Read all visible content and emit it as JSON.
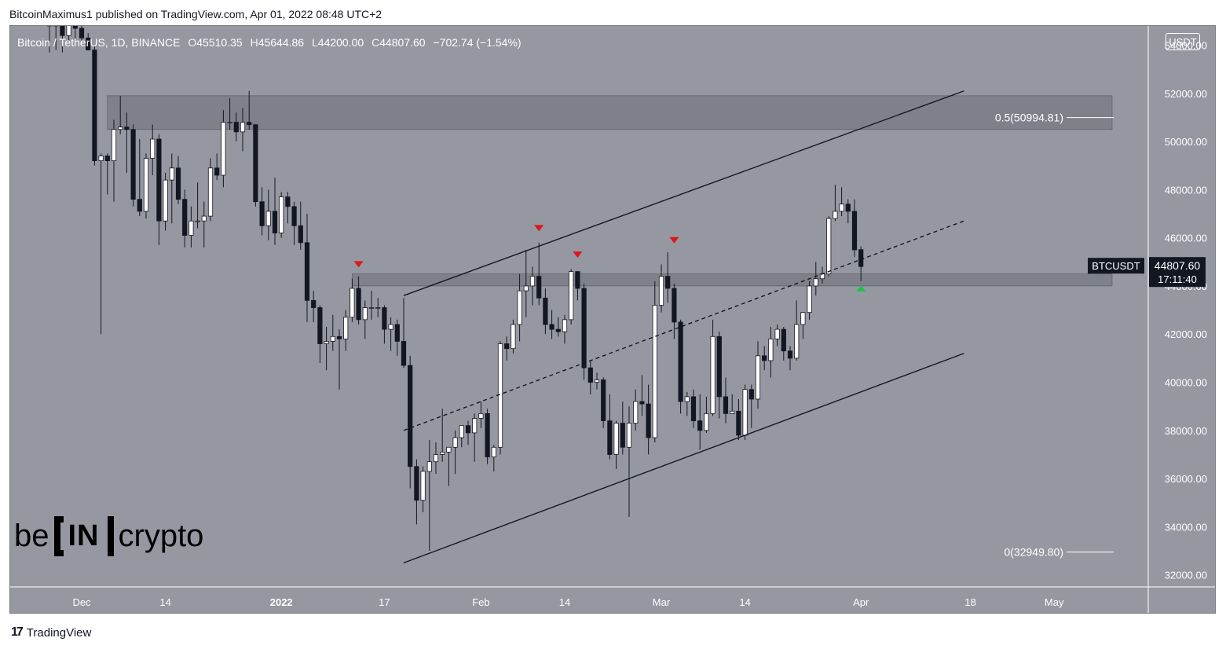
{
  "header": {
    "publisher_line": "BitcoinMaximus1 published on TradingView.com, Apr 01, 2022 08:48 UTC+2"
  },
  "symbol": {
    "name": "Bitcoin / TetherUS, 1D, BINANCE",
    "o_label": "O",
    "o_value": "45510.35",
    "h_label": "H",
    "h_value": "45644.86",
    "l_label": "L",
    "l_value": "44200.00",
    "c_label": "C",
    "c_value": "44807.60",
    "change": "−702.74 (−1.54%)"
  },
  "price_unit": "USDT",
  "footer": {
    "logo": "17",
    "brand": "TradingView"
  },
  "watermark": {
    "left": "be",
    "middle": "IN",
    "right": "crypto"
  },
  "colors": {
    "background": "#9598a1",
    "up_candle": "#ffffff",
    "down_candle": "#131722",
    "marker_red": "#e0151a",
    "marker_green": "#22c04b",
    "zone": "#6e7079"
  },
  "chart_data": {
    "type": "candlestick",
    "ylim": [
      31500,
      54800
    ],
    "y_ticks": [
      32000,
      34000,
      36000,
      38000,
      40000,
      42000,
      44000,
      46000,
      48000,
      50000,
      52000,
      54000
    ],
    "x_start_date": "2021-11-26",
    "x_ticks": [
      {
        "label": "Dec",
        "date": "2021-12-01"
      },
      {
        "label": "14",
        "date": "2021-12-14"
      },
      {
        "label": "2022",
        "date": "2022-01-01",
        "bold": true
      },
      {
        "label": "17",
        "date": "2022-01-17"
      },
      {
        "label": "Feb",
        "date": "2022-02-01"
      },
      {
        "label": "14",
        "date": "2022-02-14"
      },
      {
        "label": "Mar",
        "date": "2022-03-01"
      },
      {
        "label": "14",
        "date": "2022-03-14"
      },
      {
        "label": "Apr",
        "date": "2022-04-01"
      },
      {
        "label": "18",
        "date": "2022-04-18"
      },
      {
        "label": "May",
        "date": "2022-05-01"
      }
    ],
    "candles": [
      [
        "2021-11-26",
        58900,
        59200,
        53700,
        54800
      ],
      [
        "2021-11-27",
        54800,
        55300,
        53800,
        54900
      ],
      [
        "2021-11-28",
        54900,
        55000,
        53700,
        54400
      ],
      [
        "2021-11-29",
        54400,
        55200,
        54200,
        55000
      ],
      [
        "2021-11-30",
        55000,
        55200,
        54100,
        54700
      ],
      [
        "2021-12-01",
        54700,
        55300,
        54200,
        54300
      ],
      [
        "2021-12-02",
        54300,
        54500,
        53800,
        53800
      ],
      [
        "2021-12-03",
        53800,
        54000,
        49000,
        49200
      ],
      [
        "2021-12-04",
        49200,
        49500,
        42000,
        49400
      ],
      [
        "2021-12-05",
        49400,
        49500,
        47800,
        49200
      ],
      [
        "2021-12-06",
        49200,
        50900,
        47500,
        50500
      ],
      [
        "2021-12-07",
        50500,
        51900,
        50300,
        50600
      ],
      [
        "2021-12-08",
        50600,
        51200,
        48700,
        50500
      ],
      [
        "2021-12-09",
        50500,
        50700,
        47300,
        47600
      ],
      [
        "2021-12-10",
        47600,
        50100,
        46900,
        47100
      ],
      [
        "2021-12-11",
        47100,
        49500,
        46800,
        49300
      ],
      [
        "2021-12-12",
        49300,
        50700,
        48600,
        50100
      ],
      [
        "2021-12-13",
        50100,
        50300,
        45700,
        46700
      ],
      [
        "2021-12-14",
        46700,
        48700,
        46300,
        48400
      ],
      [
        "2021-12-15",
        48400,
        49500,
        46600,
        48900
      ],
      [
        "2021-12-16",
        48900,
        49400,
        47400,
        47600
      ],
      [
        "2021-12-17",
        47600,
        48000,
        45600,
        46100
      ],
      [
        "2021-12-18",
        46100,
        47300,
        45600,
        46700
      ],
      [
        "2021-12-19",
        46700,
        48300,
        46400,
        46700
      ],
      [
        "2021-12-20",
        46700,
        47500,
        45600,
        46900
      ],
      [
        "2021-12-21",
        46900,
        49300,
        46700,
        48900
      ],
      [
        "2021-12-22",
        48900,
        49500,
        48400,
        48600
      ],
      [
        "2021-12-23",
        48600,
        51300,
        48100,
        50800
      ],
      [
        "2021-12-24",
        50800,
        51800,
        50500,
        50800
      ],
      [
        "2021-12-25",
        50800,
        51200,
        50000,
        50400
      ],
      [
        "2021-12-26",
        50400,
        51400,
        49600,
        50800
      ],
      [
        "2021-12-27",
        50800,
        52100,
        50500,
        50700
      ],
      [
        "2021-12-28",
        50700,
        50700,
        47300,
        47500
      ],
      [
        "2021-12-29",
        47500,
        48100,
        46100,
        46500
      ],
      [
        "2021-12-30",
        46500,
        48000,
        45900,
        47100
      ],
      [
        "2021-12-31",
        47100,
        48500,
        45700,
        46200
      ],
      [
        "2022-01-01",
        46200,
        47900,
        46000,
        47700
      ],
      [
        "2022-01-02",
        47700,
        47900,
        46600,
        47300
      ],
      [
        "2022-01-03",
        47300,
        47500,
        45700,
        46500
      ],
      [
        "2022-01-04",
        46500,
        47500,
        45500,
        45800
      ],
      [
        "2022-01-05",
        45800,
        47000,
        42500,
        43400
      ],
      [
        "2022-01-06",
        43400,
        43800,
        42500,
        43100
      ],
      [
        "2022-01-07",
        43100,
        43200,
        40800,
        41600
      ],
      [
        "2022-01-08",
        41600,
        42300,
        40500,
        41700
      ],
      [
        "2022-01-09",
        41700,
        42800,
        41300,
        41900
      ],
      [
        "2022-01-10",
        41900,
        42200,
        39700,
        41800
      ],
      [
        "2022-01-11",
        41800,
        43000,
        41300,
        42700
      ],
      [
        "2022-01-12",
        42700,
        44300,
        42500,
        43900
      ],
      [
        "2022-01-13",
        43900,
        44400,
        42400,
        42600
      ],
      [
        "2022-01-14",
        42600,
        43400,
        41800,
        43100
      ],
      [
        "2022-01-15",
        43100,
        43800,
        42600,
        43100
      ],
      [
        "2022-01-16",
        43100,
        43500,
        42700,
        43100
      ],
      [
        "2022-01-17",
        43100,
        43200,
        41600,
        42200
      ],
      [
        "2022-01-18",
        42200,
        42700,
        41300,
        42400
      ],
      [
        "2022-01-19",
        42400,
        42600,
        41100,
        41700
      ],
      [
        "2022-01-20",
        41700,
        43500,
        40600,
        40700
      ],
      [
        "2022-01-21",
        40700,
        41100,
        35600,
        36500
      ],
      [
        "2022-01-22",
        36500,
        36800,
        34100,
        35100
      ],
      [
        "2022-01-23",
        35100,
        36500,
        34600,
        36300
      ],
      [
        "2022-01-24",
        36300,
        37600,
        33000,
        36700
      ],
      [
        "2022-01-25",
        36700,
        37500,
        36200,
        37000
      ],
      [
        "2022-01-26",
        37000,
        38900,
        36700,
        37100
      ],
      [
        "2022-01-27",
        37100,
        37300,
        35700,
        37300
      ],
      [
        "2022-01-28",
        37300,
        38000,
        36200,
        37700
      ],
      [
        "2022-01-29",
        37700,
        38200,
        37300,
        38200
      ],
      [
        "2022-01-30",
        38200,
        38400,
        37400,
        37900
      ],
      [
        "2022-01-31",
        37900,
        38700,
        36700,
        38500
      ],
      [
        "2022-02-01",
        38500,
        39200,
        38100,
        38700
      ],
      [
        "2022-02-02",
        38700,
        38900,
        36600,
        36900
      ],
      [
        "2022-02-03",
        36900,
        37400,
        36300,
        37300
      ],
      [
        "2022-02-04",
        37300,
        41700,
        37000,
        41600
      ],
      [
        "2022-02-05",
        41600,
        41900,
        40900,
        41400
      ],
      [
        "2022-02-06",
        41400,
        42600,
        41200,
        42400
      ],
      [
        "2022-02-07",
        42400,
        44500,
        41700,
        43800
      ],
      [
        "2022-02-08",
        43800,
        45500,
        42700,
        44000
      ],
      [
        "2022-02-09",
        44000,
        44800,
        43200,
        44400
      ],
      [
        "2022-02-10",
        44400,
        45800,
        43200,
        43500
      ],
      [
        "2022-02-11",
        43500,
        43900,
        42000,
        42400
      ],
      [
        "2022-02-12",
        42400,
        43000,
        41800,
        42200
      ],
      [
        "2022-02-13",
        42200,
        42700,
        41900,
        42100
      ],
      [
        "2022-02-14",
        42100,
        42800,
        41600,
        42600
      ],
      [
        "2022-02-15",
        42600,
        44700,
        42400,
        44600
      ],
      [
        "2022-02-16",
        44600,
        44600,
        43400,
        43900
      ],
      [
        "2022-02-17",
        43900,
        44100,
        40100,
        40600
      ],
      [
        "2022-02-18",
        40600,
        40900,
        39500,
        40000
      ],
      [
        "2022-02-19",
        40000,
        40400,
        39700,
        40100
      ],
      [
        "2022-02-20",
        40100,
        40200,
        38100,
        38400
      ],
      [
        "2022-02-21",
        38400,
        39500,
        36800,
        37000
      ],
      [
        "2022-02-22",
        37000,
        38400,
        36400,
        38300
      ],
      [
        "2022-02-23",
        38300,
        39200,
        37000,
        37300
      ],
      [
        "2022-02-24",
        37300,
        39000,
        34400,
        38300
      ],
      [
        "2022-02-25",
        38300,
        39700,
        38000,
        39200
      ],
      [
        "2022-02-26",
        39200,
        40300,
        38600,
        39100
      ],
      [
        "2022-02-27",
        39100,
        39900,
        37000,
        37700
      ],
      [
        "2022-02-28",
        37700,
        44200,
        37500,
        43200
      ],
      [
        "2022-03-01",
        43200,
        44900,
        42900,
        44400
      ],
      [
        "2022-03-02",
        44400,
        45400,
        43300,
        43900
      ],
      [
        "2022-03-03",
        43900,
        44100,
        41800,
        42500
      ],
      [
        "2022-03-04",
        42500,
        42600,
        38700,
        39200
      ],
      [
        "2022-03-05",
        39200,
        39600,
        38600,
        39400
      ],
      [
        "2022-03-06",
        39400,
        39700,
        38100,
        38400
      ],
      [
        "2022-03-07",
        38400,
        39500,
        37200,
        38000
      ],
      [
        "2022-03-08",
        38000,
        39400,
        37900,
        38700
      ],
      [
        "2022-03-09",
        38700,
        42600,
        38600,
        41900
      ],
      [
        "2022-03-10",
        41900,
        42100,
        38500,
        39400
      ],
      [
        "2022-03-11",
        39400,
        40200,
        38300,
        38700
      ],
      [
        "2022-03-12",
        38700,
        39500,
        38700,
        38800
      ],
      [
        "2022-03-13",
        38800,
        39300,
        37600,
        37800
      ],
      [
        "2022-03-14",
        37800,
        39900,
        37600,
        39700
      ],
      [
        "2022-03-15",
        39700,
        39900,
        38100,
        39300
      ],
      [
        "2022-03-16",
        39300,
        41700,
        38900,
        41100
      ],
      [
        "2022-03-17",
        41100,
        41500,
        40500,
        40900
      ],
      [
        "2022-03-18",
        40900,
        42300,
        40200,
        41800
      ],
      [
        "2022-03-19",
        41800,
        42400,
        41500,
        42200
      ],
      [
        "2022-03-20",
        42200,
        42300,
        40900,
        41300
      ],
      [
        "2022-03-21",
        41300,
        41500,
        40500,
        41000
      ],
      [
        "2022-03-22",
        41000,
        43400,
        40900,
        42400
      ],
      [
        "2022-03-23",
        42400,
        42900,
        41800,
        42900
      ],
      [
        "2022-03-24",
        42900,
        44200,
        42600,
        44000
      ],
      [
        "2022-03-25",
        44000,
        45000,
        43600,
        44300
      ],
      [
        "2022-03-26",
        44300,
        44800,
        44100,
        44500
      ],
      [
        "2022-03-27",
        44500,
        46900,
        44400,
        46800
      ],
      [
        "2022-03-28",
        46800,
        48200,
        46700,
        47100
      ],
      [
        "2022-03-29",
        47100,
        48100,
        46900,
        47400
      ],
      [
        "2022-03-30",
        47400,
        47600,
        46600,
        47100
      ],
      [
        "2022-03-31",
        47100,
        47600,
        45200,
        45500
      ],
      [
        "2022-04-01",
        45510.35,
        45644.86,
        44200,
        44807.6
      ]
    ],
    "markers": [
      {
        "date": "2022-01-13",
        "price": 44900,
        "type": "resistance-rejection",
        "color": "#e0151a"
      },
      {
        "date": "2022-02-10",
        "price": 46400,
        "type": "resistance-rejection",
        "color": "#e0151a"
      },
      {
        "date": "2022-02-16",
        "price": 45300,
        "type": "resistance-rejection",
        "color": "#e0151a"
      },
      {
        "date": "2022-03-03",
        "price": 45900,
        "type": "resistance-rejection",
        "color": "#e0151a"
      },
      {
        "date": "2022-04-01",
        "price": 43900,
        "type": "support-bounce",
        "color": "#22c04b"
      }
    ],
    "zones": [
      {
        "date_from": "2021-12-05",
        "date_to": "2022-05-10",
        "price_from": 50500,
        "price_to": 51900
      },
      {
        "date_from": "2022-01-12",
        "date_to": "2022-05-10",
        "price_from": 44000,
        "price_to": 44500
      }
    ],
    "channel": {
      "upper": {
        "from": [
          "2022-01-20",
          43600
        ],
        "to": [
          "2022-04-17",
          52100
        ]
      },
      "middle": {
        "from": [
          "2022-01-20",
          38000
        ],
        "to": [
          "2022-04-17",
          46700
        ],
        "dashed": true
      },
      "lower": {
        "from": [
          "2022-01-20",
          32500
        ],
        "to": [
          "2022-04-17",
          41200
        ]
      }
    },
    "fib_levels": [
      {
        "label": "0.5(50994.81)",
        "price": 50994.81
      },
      {
        "label": "0(32949.80)",
        "price": 32949.8
      }
    ],
    "last_price": {
      "symbol": "BTCUSDT",
      "price": "44807.60",
      "countdown": "17:11:40"
    }
  }
}
